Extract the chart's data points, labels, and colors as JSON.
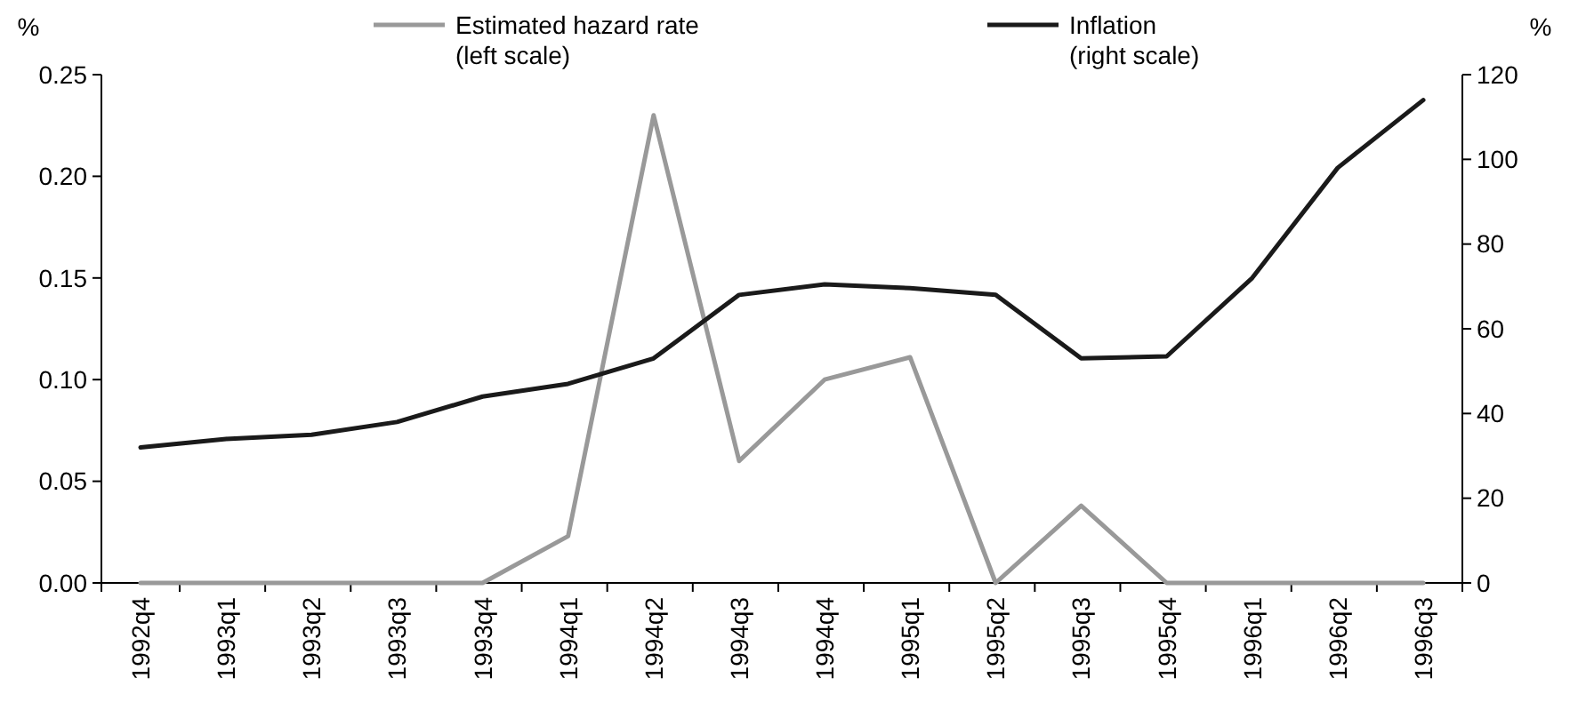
{
  "chart_data": {
    "type": "line",
    "ylabel": "%",
    "y2label": "%",
    "categories": [
      "1992q4",
      "1993q1",
      "1993q2",
      "1993q3",
      "1993q4",
      "1994q1",
      "1994q2",
      "1994q3",
      "1994q4",
      "1995q1",
      "1995q2",
      "1995q3",
      "1995q4",
      "1996q1",
      "1996q2",
      "1996q3"
    ],
    "series": [
      {
        "name": "Estimated hazard rate\n(left scale)",
        "color": "#999999",
        "values": [
          0,
          0,
          0,
          0,
          0,
          0.023,
          0.23,
          0.06,
          0.1,
          0.111,
          0,
          0.038,
          0,
          0,
          0,
          0
        ]
      },
      {
        "name": "Inflation\n(right scale)",
        "color": "#1a1a1a",
        "axis": "y2",
        "values": [
          32,
          34,
          35,
          38,
          44,
          47,
          53,
          68,
          70.5,
          69.6,
          68,
          53,
          53.5,
          72,
          98,
          114
        ]
      }
    ],
    "ylim": [
      0,
      0.25
    ],
    "yticks": [
      {
        "value": 0,
        "label": "0.00"
      },
      {
        "value": 0.05,
        "label": "0.05"
      },
      {
        "value": 0.1,
        "label": "0.10"
      },
      {
        "value": 0.15,
        "label": "0.15"
      },
      {
        "value": 0.2,
        "label": "0.20"
      },
      {
        "value": 0.25,
        "label": "0.25"
      }
    ],
    "y2lim": [
      0,
      120
    ],
    "y2ticks": [
      0,
      20,
      40,
      60,
      80,
      100,
      120
    ],
    "legend": "top",
    "grid": false,
    "marker": "none",
    "line_style": "solid"
  }
}
